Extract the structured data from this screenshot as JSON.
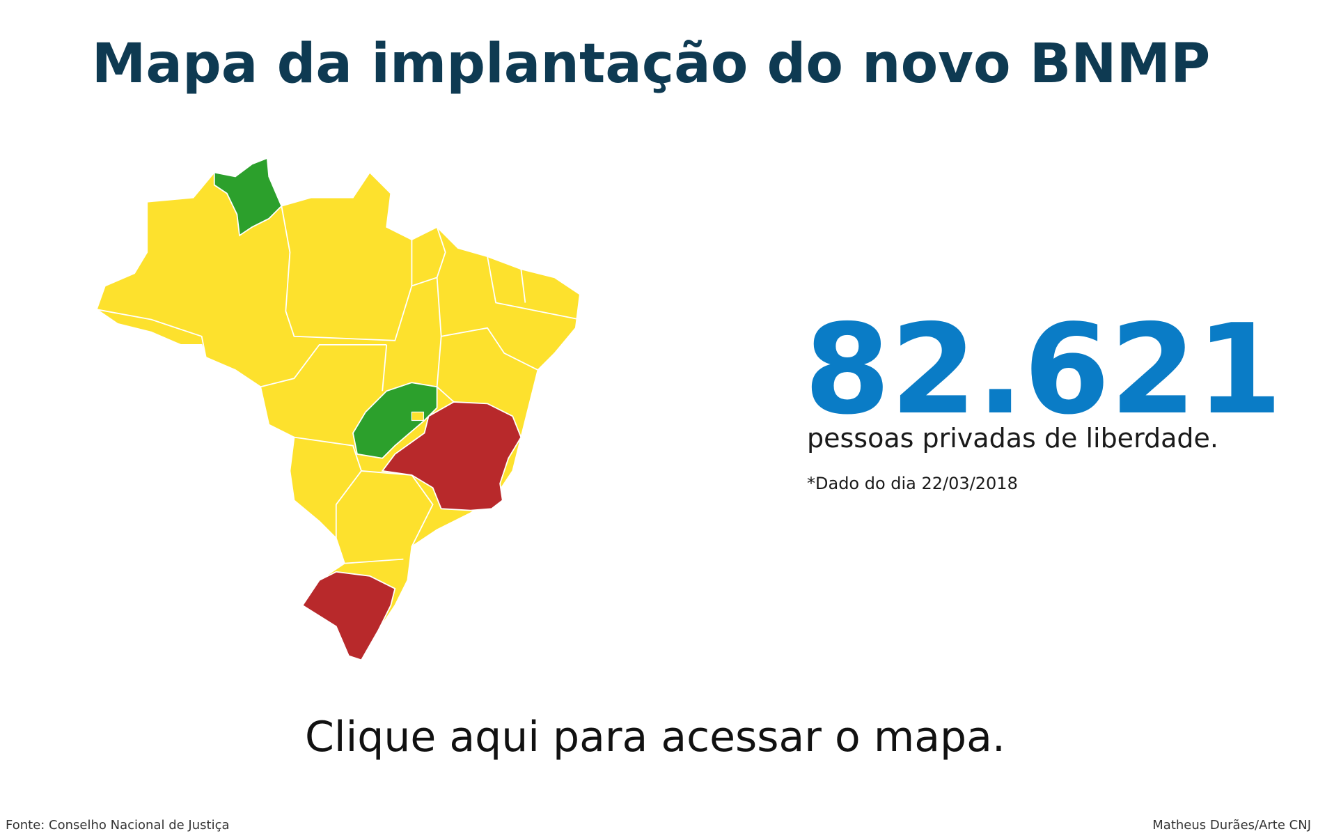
{
  "header": {
    "title": "Mapa da implantação do novo BNMP"
  },
  "stat": {
    "value": "82.621",
    "label": "pessoas privadas de liberdade.",
    "note": "*Dado do dia 22/03/2018"
  },
  "link": {
    "text": "Clique aqui para acessar o mapa."
  },
  "footer": {
    "source": "Fonte: Conselho Nacional de Justiça",
    "credit": "Matheus Durães/Arte CNJ"
  }
}
